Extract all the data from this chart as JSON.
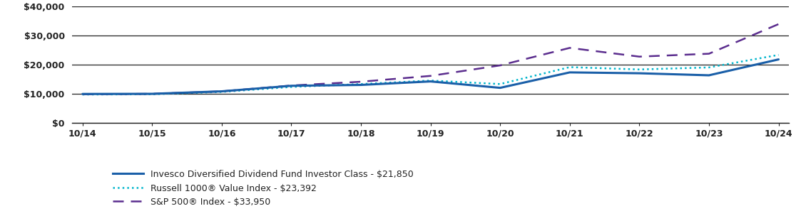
{
  "x_labels": [
    "10/14",
    "10/15",
    "10/16",
    "10/17",
    "10/18",
    "10/19",
    "10/20",
    "10/21",
    "10/22",
    "10/23",
    "10/24"
  ],
  "x_values": [
    0,
    1,
    2,
    3,
    4,
    5,
    6,
    7,
    8,
    9,
    10
  ],
  "fund_values": [
    10000,
    10050,
    10900,
    12800,
    13100,
    14300,
    12100,
    17400,
    17100,
    16400,
    21850
  ],
  "russell_values": [
    9800,
    9900,
    10700,
    12400,
    13400,
    14600,
    13400,
    19200,
    18400,
    19100,
    23392
  ],
  "sp500_values": [
    9900,
    10050,
    10900,
    12900,
    14200,
    16200,
    19800,
    25800,
    22800,
    23800,
    33950
  ],
  "fund_color": "#1a5fa8",
  "russell_color": "#00b5cc",
  "sp500_color": "#5b2d8e",
  "fund_label": "Invesco Diversified Dividend Fund Investor Class - $21,850",
  "russell_label": "Russell 1000® Value Index - $23,392",
  "sp500_label": "S&P 500® Index - $33,950",
  "ylim": [
    0,
    40000
  ],
  "yticks": [
    0,
    10000,
    20000,
    30000,
    40000
  ],
  "ytick_labels": [
    "$0",
    "$10,000",
    "$20,000",
    "$30,000",
    "$40,000"
  ],
  "background_color": "#ffffff",
  "grid_color": "#222222",
  "axis_color": "#222222",
  "legend_fontsize": 9,
  "tick_fontsize": 9,
  "fund_lw": 2.2,
  "russell_lw": 1.8,
  "sp500_lw": 1.8
}
